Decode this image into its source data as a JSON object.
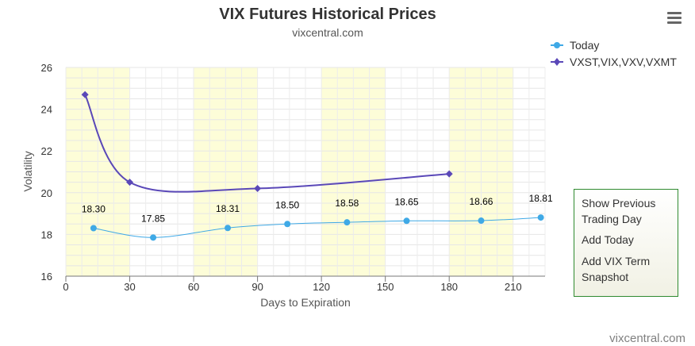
{
  "chart_data": {
    "type": "line",
    "title": "VIX Futures Historical Prices",
    "subtitle": "vixcentral.com",
    "xlabel": "Days to Expiration",
    "ylabel": "Volatility",
    "xlim": [
      0,
      225
    ],
    "ylim": [
      16,
      26
    ],
    "xticks": [
      0,
      30,
      60,
      90,
      120,
      150,
      180,
      210
    ],
    "yticks": [
      16,
      18,
      20,
      22,
      24,
      26
    ],
    "grid": true,
    "legend_position": "top-right",
    "series": [
      {
        "name": "Today",
        "color": "#3fa9e6",
        "marker": "circle",
        "x": [
          13,
          41,
          76,
          104,
          132,
          160,
          195,
          223
        ],
        "y": [
          18.3,
          17.85,
          18.31,
          18.5,
          18.58,
          18.65,
          18.66,
          18.81
        ],
        "labels": [
          "18.30",
          "17.85",
          "18.31",
          "18.50",
          "18.58",
          "18.65",
          "18.66",
          "18.81"
        ]
      },
      {
        "name": "VXST,VIX,VXV,VXMT",
        "color": "#5a48b8",
        "marker": "diamond",
        "x": [
          9,
          30,
          90,
          180
        ],
        "y": [
          24.7,
          20.5,
          20.2,
          20.9
        ]
      }
    ],
    "shaded_bands_x": [
      [
        0,
        30
      ],
      [
        60,
        90
      ],
      [
        120,
        150
      ],
      [
        180,
        210
      ]
    ],
    "band_color": "#fdfdd8",
    "credit": "vixcentral.com"
  },
  "menu": {
    "icon": "hamburger-icon",
    "items": [
      "Show Previous Trading Day",
      "Add Today",
      "Add VIX Term Snapshot"
    ]
  }
}
